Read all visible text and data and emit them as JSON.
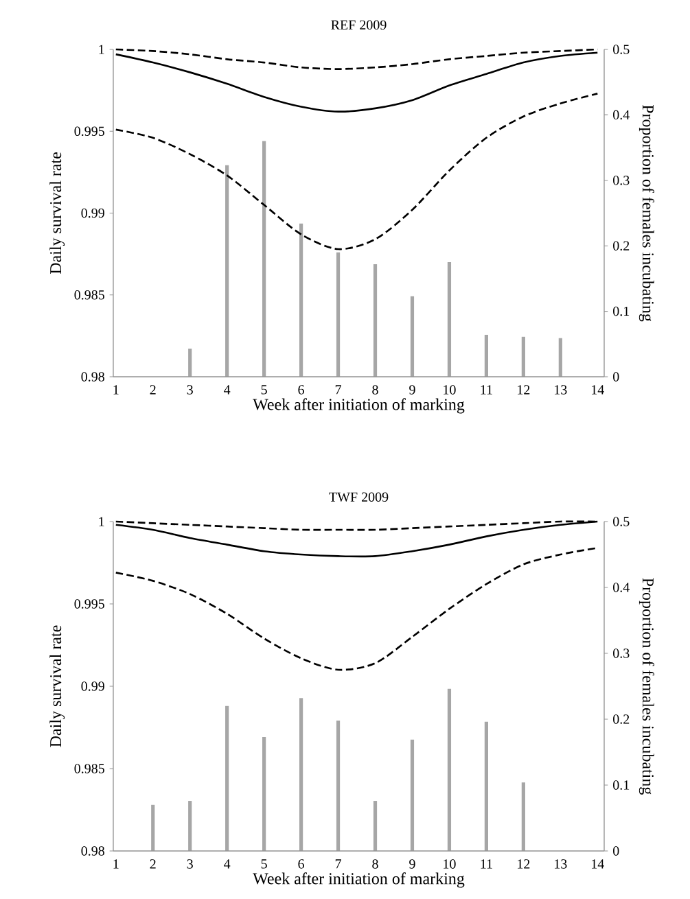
{
  "chart_data": [
    {
      "type": "line",
      "title": "REF 2009",
      "xlabel": "Week after initiation of marking",
      "ylabel": "Daily survival rate",
      "y2label": "Proportion of females incubating",
      "x": [
        1,
        2,
        3,
        4,
        5,
        6,
        7,
        8,
        9,
        10,
        11,
        12,
        13,
        14
      ],
      "xlim": [
        0.93,
        14.18
      ],
      "xticks": [
        1,
        2,
        3,
        4,
        5,
        6,
        7,
        8,
        9,
        10,
        11,
        12,
        13,
        14
      ],
      "ylim": [
        0.98,
        1
      ],
      "yticks": [
        0.98,
        0.985,
        0.99,
        0.995,
        1
      ],
      "y2lim": [
        0,
        0.5
      ],
      "y2ticks": [
        0,
        0.1,
        0.2,
        0.3,
        0.4,
        0.5
      ],
      "series": [
        {
          "type": "bar",
          "axis": "y2",
          "color": "#a6a6a6",
          "values": [
            null,
            null,
            0.043,
            0.323,
            0.36,
            0.234,
            0.19,
            0.172,
            0.123,
            0.175,
            0.064,
            0.061,
            0.059,
            null
          ]
        },
        {
          "color": "#000000",
          "line_style": "solid",
          "values": [
            0.9997,
            0.9992,
            0.9986,
            0.9979,
            0.9971,
            0.9965,
            0.9962,
            0.9964,
            0.9969,
            0.9978,
            0.9985,
            0.9992,
            0.9996,
            0.9998
          ]
        },
        {
          "color": "#000000",
          "line_style": "dashed",
          "values": [
            1.0,
            0.9999,
            0.9997,
            0.9994,
            0.9992,
            0.9989,
            0.9988,
            0.9989,
            0.9991,
            0.9994,
            0.9996,
            0.9998,
            0.9999,
            1.0
          ]
        },
        {
          "color": "#000000",
          "line_style": "dashed",
          "values": [
            0.9951,
            0.9946,
            0.9936,
            0.9923,
            0.9905,
            0.9887,
            0.9878,
            0.9884,
            0.9902,
            0.9926,
            0.9946,
            0.9959,
            0.9967,
            0.9973
          ]
        }
      ]
    },
    {
      "type": "line",
      "title": "TWF 2009",
      "xlabel": "Week after initiation of marking",
      "ylabel": "Daily survival rate",
      "y2label": "Proportion of females incubating",
      "x": [
        1,
        2,
        3,
        4,
        5,
        6,
        7,
        8,
        9,
        10,
        11,
        12,
        13,
        14
      ],
      "xlim": [
        0.93,
        14.18
      ],
      "xticks": [
        1,
        2,
        3,
        4,
        5,
        6,
        7,
        8,
        9,
        10,
        11,
        12,
        13,
        14
      ],
      "ylim": [
        0.98,
        1
      ],
      "yticks": [
        0.98,
        0.985,
        0.99,
        0.995,
        1
      ],
      "y2lim": [
        0,
        0.5
      ],
      "y2ticks": [
        0,
        0.1,
        0.2,
        0.3,
        0.4,
        0.5
      ],
      "series": [
        {
          "type": "bar",
          "axis": "y2",
          "color": "#a6a6a6",
          "values": [
            null,
            0.07,
            0.076,
            0.22,
            0.173,
            0.232,
            0.198,
            0.076,
            0.169,
            0.246,
            0.196,
            0.104,
            null,
            null
          ]
        },
        {
          "color": "#000000",
          "line_style": "solid",
          "values": [
            0.9998,
            0.9995,
            0.999,
            0.9986,
            0.9982,
            0.998,
            0.9979,
            0.9979,
            0.9982,
            0.9986,
            0.9991,
            0.9995,
            0.9998,
            1.0
          ]
        },
        {
          "color": "#000000",
          "line_style": "dashed",
          "values": [
            1.0,
            0.9999,
            0.9998,
            0.9997,
            0.9996,
            0.9995,
            0.9995,
            0.9995,
            0.9996,
            0.9997,
            0.9998,
            0.9999,
            1.0,
            1.0
          ]
        },
        {
          "color": "#000000",
          "line_style": "dashed",
          "values": [
            0.9969,
            0.9964,
            0.9956,
            0.9944,
            0.9929,
            0.9917,
            0.991,
            0.9914,
            0.993,
            0.9947,
            0.9962,
            0.9974,
            0.998,
            0.9984
          ]
        }
      ]
    }
  ]
}
